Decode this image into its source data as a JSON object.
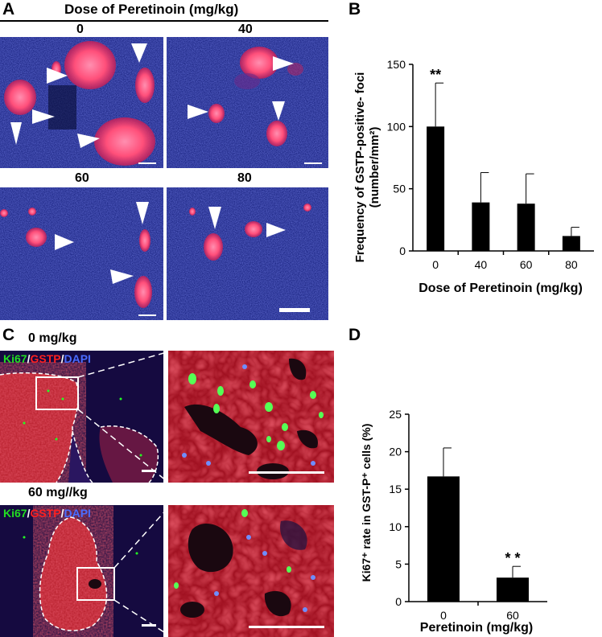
{
  "panelA": {
    "letter": "A",
    "header": "Dose of Peretinoin (mg/kg)",
    "doses": [
      "0",
      "40",
      "60",
      "80"
    ]
  },
  "panelB": {
    "letter": "B",
    "chart_data": {
      "type": "bar",
      "categories": [
        "0",
        "40",
        "60",
        "80"
      ],
      "values": [
        100,
        39,
        38,
        12
      ],
      "errors": [
        35,
        24,
        24,
        7
      ],
      "ylim": [
        0,
        150
      ],
      "yticks": [
        "0",
        "50",
        "100",
        "150"
      ],
      "ylabel_line1": "Frequency of GSTP-positive- foci",
      "ylabel_line2": "(number/mm²)",
      "xlabel": "Dose of Peretinoin (mg/kg)",
      "significance": [
        "**",
        "",
        "",
        ""
      ],
      "bar_color": "#000000"
    }
  },
  "panelC": {
    "letter": "C",
    "label_top": "0 mg/kg",
    "label_bottom": "60 mg//kg",
    "stain_ki67": "Ki67",
    "stain_gstp": "GSTP",
    "stain_dapi": "DAPI",
    "sep": "/",
    "colors": {
      "ki67": "#22dd22",
      "gstp": "#ff2020",
      "dapi": "#4a6cff"
    }
  },
  "panelD": {
    "letter": "D",
    "chart_data": {
      "type": "bar",
      "categories": [
        "0",
        "60"
      ],
      "values": [
        16.7,
        3.2
      ],
      "errors": [
        3.8,
        1.5
      ],
      "ylim": [
        0,
        25
      ],
      "yticks": [
        "0",
        "5",
        "10",
        "15",
        "20",
        "25"
      ],
      "ylabel": "Ki67⁺ rate in GST-P⁺ cells (%)",
      "xlabel": "Peretinoin (mg/kg)",
      "significance": [
        "",
        "* *"
      ],
      "bar_color": "#000000"
    }
  }
}
